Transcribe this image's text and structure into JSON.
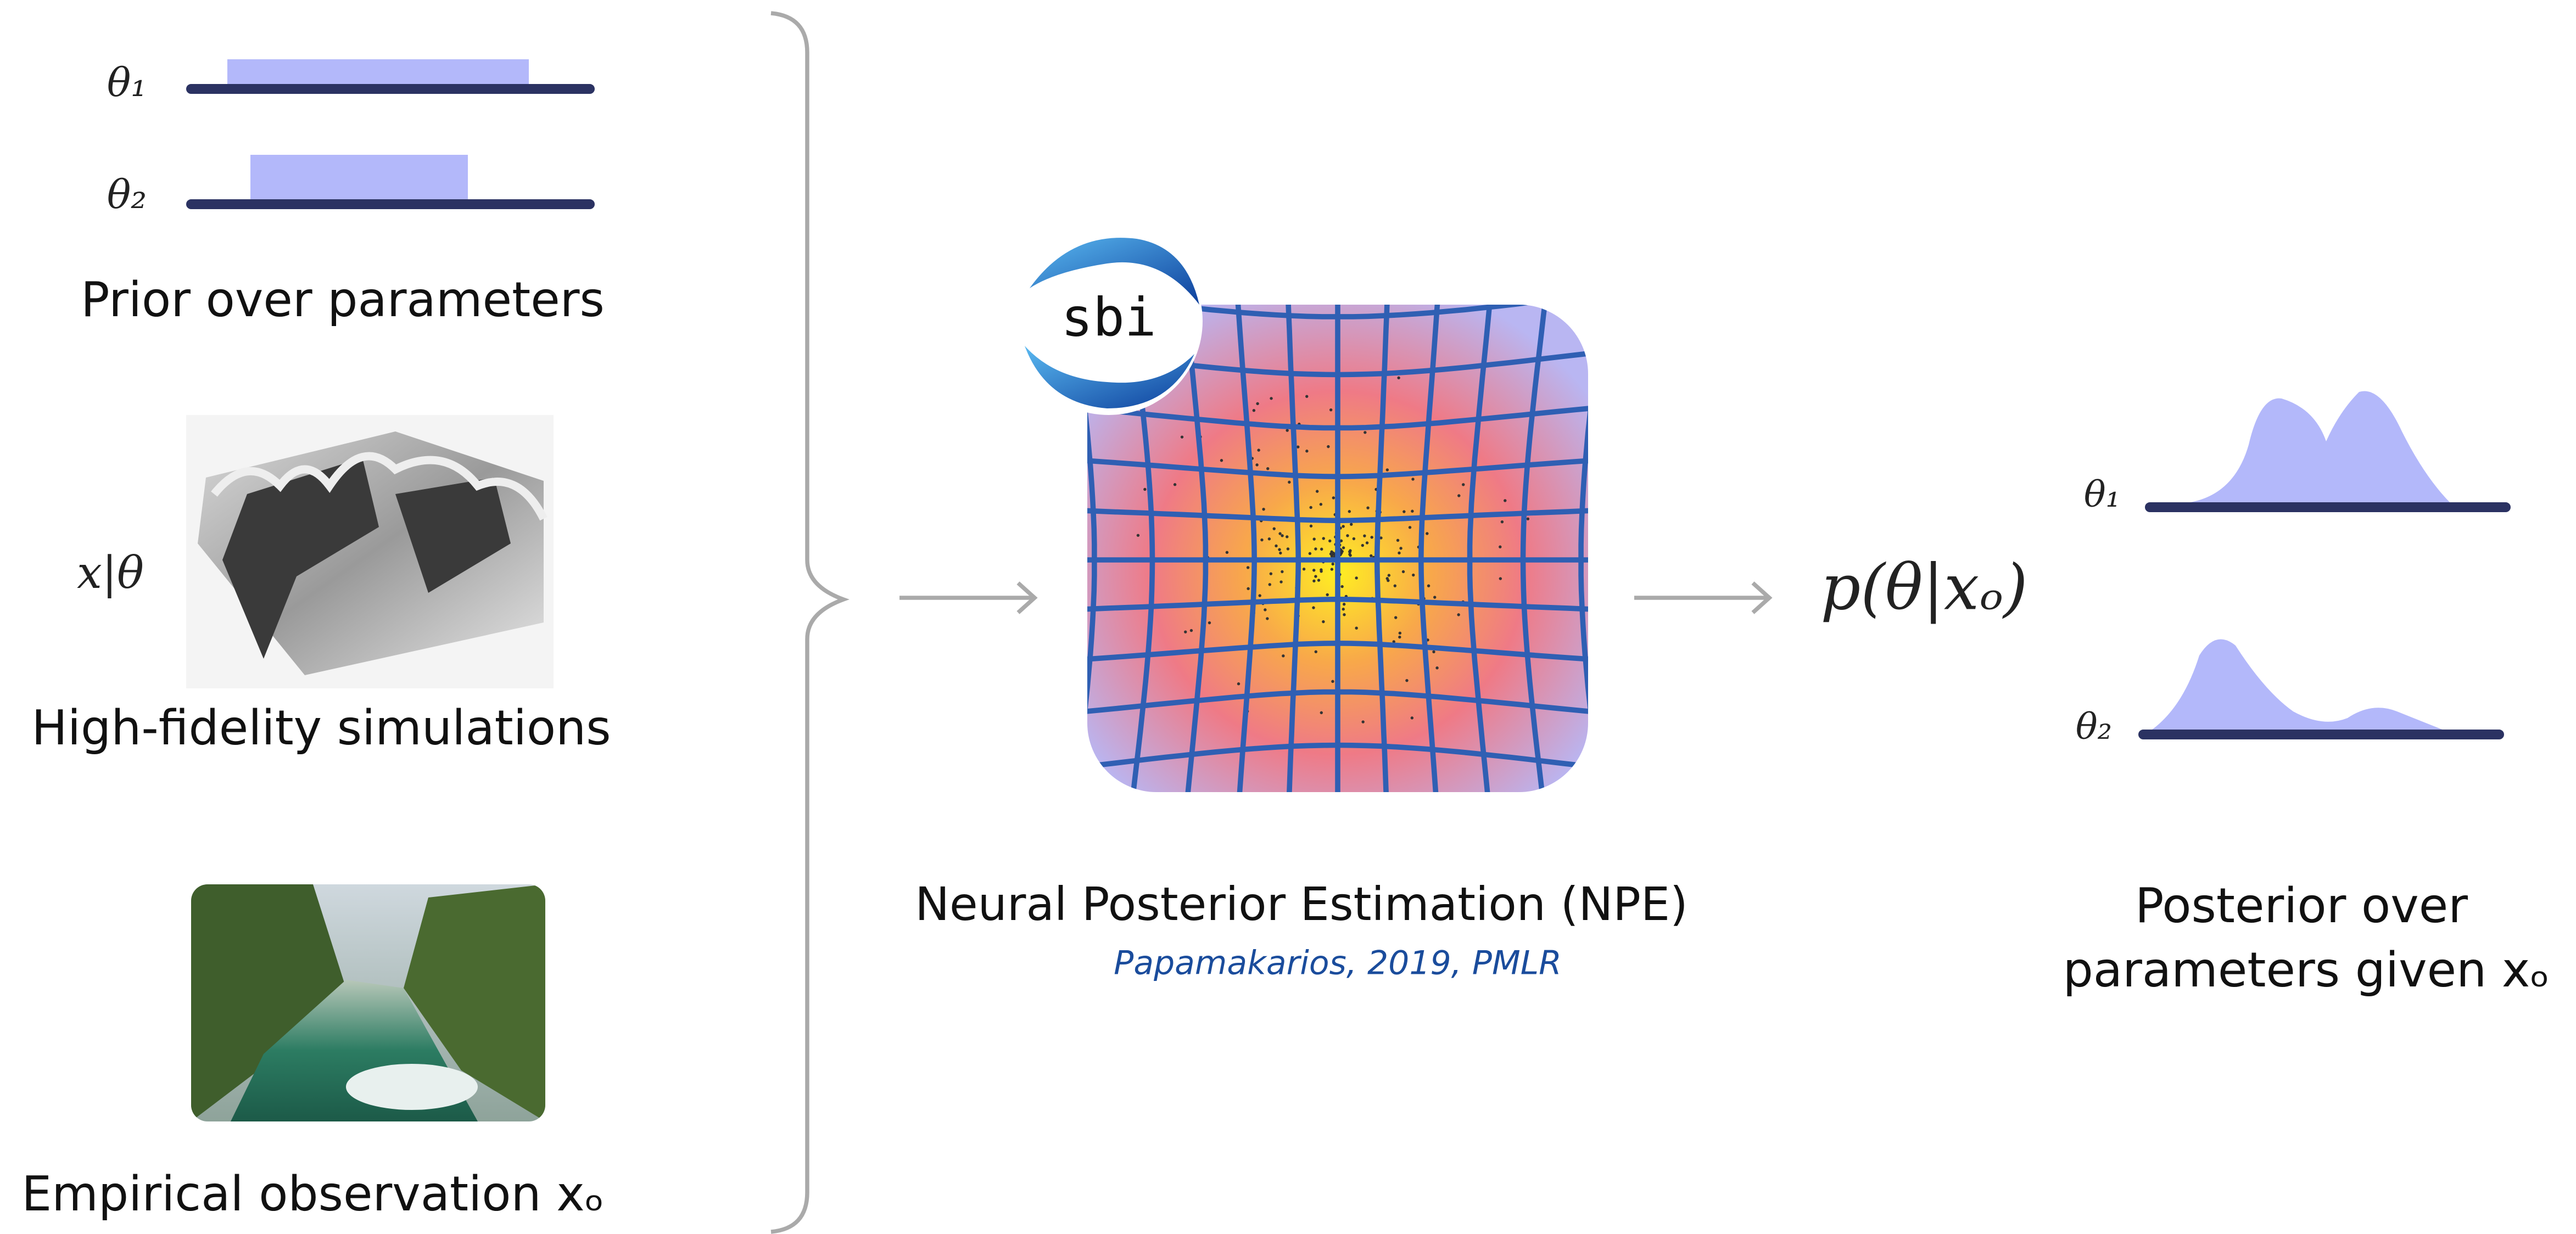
{
  "inputs": {
    "prior": {
      "params": [
        "θ₁",
        "θ₂"
      ],
      "label": "Prior over parameters"
    },
    "simulation": {
      "symbol": "x|θ",
      "label": "High-fidelity simulations"
    },
    "observation": {
      "label": "Empirical observation xₒ"
    }
  },
  "model": {
    "logo": "sbi",
    "title": "Neural Posterior Estimation (NPE)",
    "citation": "Papamakarios, 2019, PMLR"
  },
  "output": {
    "formula": "p(θ|xₒ)",
    "params": [
      "θ₁",
      "θ₂"
    ],
    "label": [
      "Posterior over",
      "parameters given xₒ"
    ]
  }
}
